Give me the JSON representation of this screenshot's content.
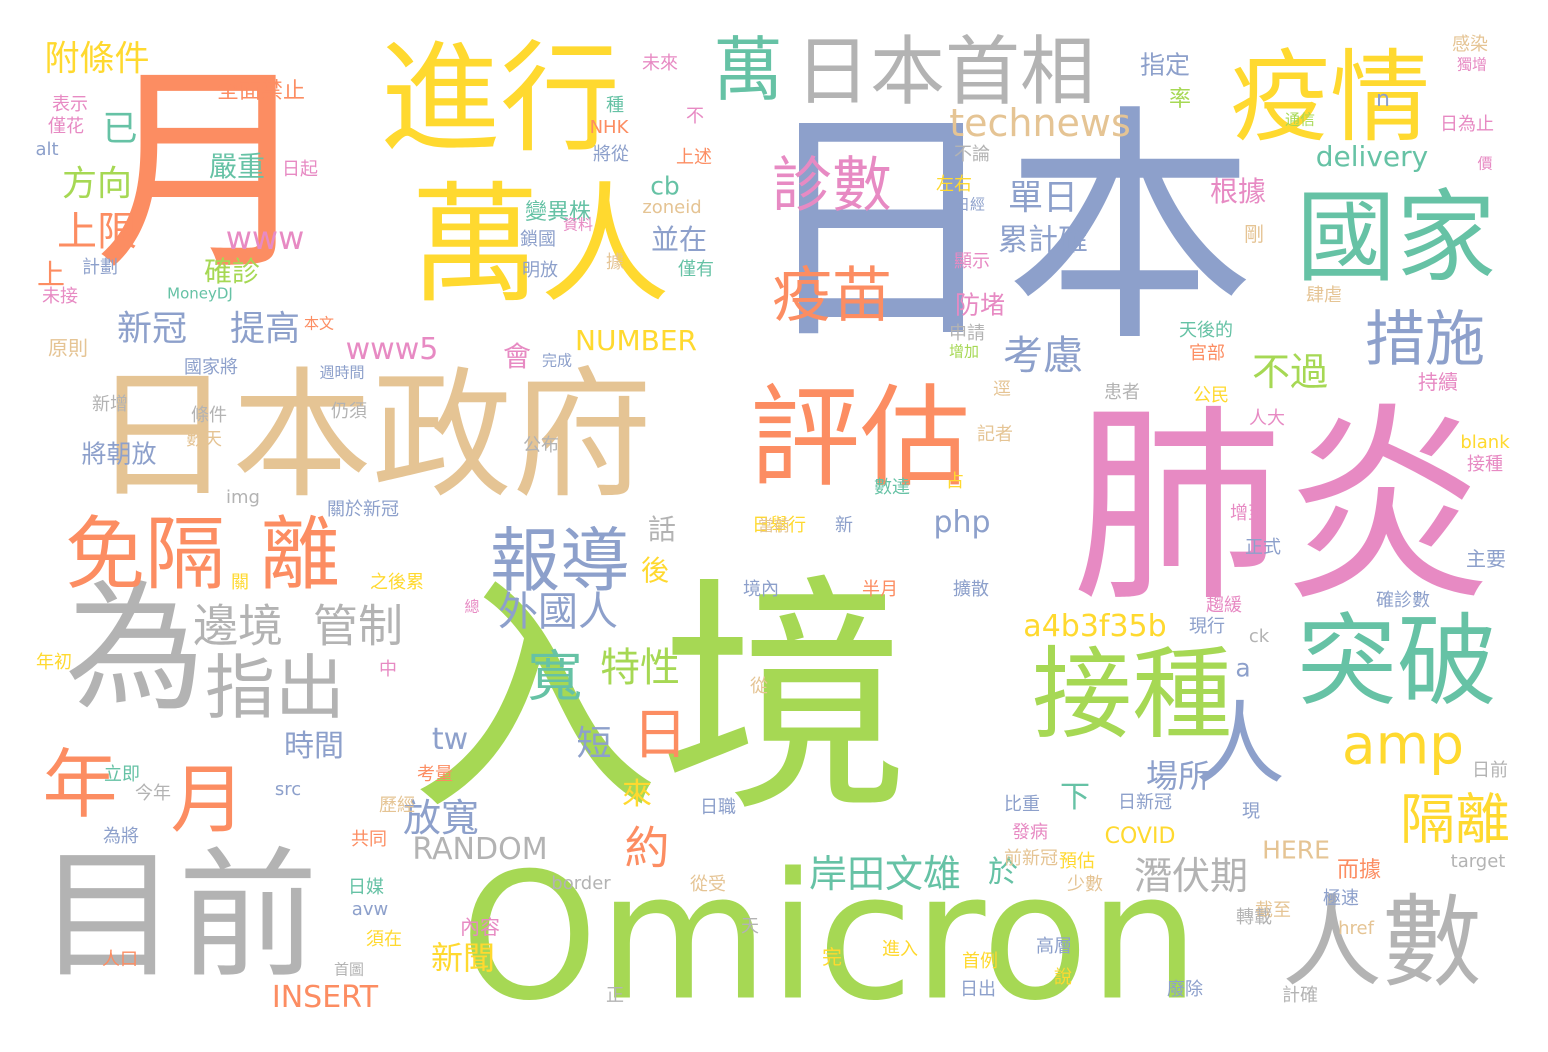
{
  "palette": [
    "#fc8d62",
    "#66c2a5",
    "#8da0cb",
    "#e78ac3",
    "#a6d854",
    "#ffd92f",
    "#e5c494",
    "#b3b3b3"
  ],
  "words": [
    {
      "text": "入境",
      "color": "#a6d854"
    },
    {
      "text": "日本",
      "color": "#8da0cb"
    },
    {
      "text": "月",
      "color": "#fc8d62"
    },
    {
      "text": "肺炎",
      "color": "#e78ac3"
    },
    {
      "text": "Omicron",
      "color": "#a6d854"
    },
    {
      "text": "日本政府",
      "color": "#e5c494"
    },
    {
      "text": "進行",
      "color": "#ffd92f"
    },
    {
      "text": "萬人",
      "color": "#ffd92f"
    },
    {
      "text": "為",
      "color": "#b3b3b3"
    },
    {
      "text": "目前",
      "color": "#b3b3b3"
    },
    {
      "text": "評估",
      "color": "#fc8d62"
    },
    {
      "text": "疫情",
      "color": "#ffd92f"
    },
    {
      "text": "國家",
      "color": "#66c2a5"
    },
    {
      "text": "突破",
      "color": "#66c2a5"
    },
    {
      "text": "接種",
      "color": "#a6d854"
    },
    {
      "text": "人數",
      "color": "#b3b3b3"
    },
    {
      "text": "人",
      "color": "#8da0cb"
    },
    {
      "text": "日本首相",
      "color": "#b3b3b3"
    },
    {
      "text": "萬",
      "color": "#66c2a5"
    },
    {
      "text": "免隔",
      "color": "#fc8d62"
    },
    {
      "text": "離",
      "color": "#fc8d62"
    },
    {
      "text": "年",
      "color": "#fc8d62"
    },
    {
      "text": "月",
      "color": "#fc8d62"
    },
    {
      "text": "指出",
      "color": "#b3b3b3"
    },
    {
      "text": "報導",
      "color": "#8da0cb"
    },
    {
      "text": "診數",
      "color": "#e78ac3"
    },
    {
      "text": "疫苗",
      "color": "#fc8d62"
    },
    {
      "text": "措施",
      "color": "#8da0cb"
    },
    {
      "text": "amp",
      "color": "#ffd92f"
    },
    {
      "text": "隔離",
      "color": "#ffd92f"
    },
    {
      "text": "邊境",
      "color": "#b3b3b3"
    },
    {
      "text": "管制",
      "color": "#b3b3b3"
    },
    {
      "text": "寬",
      "color": "#66c2a5"
    },
    {
      "text": "日",
      "color": "#fc8d62"
    },
    {
      "text": "特性",
      "color": "#a6d854"
    },
    {
      "text": "約",
      "color": "#fc8d62"
    },
    {
      "text": "外國人",
      "color": "#8da0cb"
    },
    {
      "text": "technews",
      "color": "#e5c494"
    },
    {
      "text": "單日",
      "color": "#8da0cb"
    },
    {
      "text": "累計確",
      "color": "#8da0cb"
    },
    {
      "text": "考慮",
      "color": "#8da0cb"
    },
    {
      "text": "不過",
      "color": "#a6d854"
    },
    {
      "text": "附條件",
      "color": "#ffd92f"
    },
    {
      "text": "方向",
      "color": "#a6d854"
    },
    {
      "text": "上限",
      "color": "#fc8d62"
    },
    {
      "text": "已",
      "color": "#66c2a5"
    },
    {
      "text": "新冠",
      "color": "#8da0cb"
    },
    {
      "text": "提高",
      "color": "#8da0cb"
    },
    {
      "text": "www",
      "color": "#e78ac3"
    },
    {
      "text": "www5",
      "color": "#e78ac3"
    },
    {
      "text": "NUMBER",
      "color": "#ffd92f"
    },
    {
      "text": "RANDOM",
      "color": "#b3b3b3"
    },
    {
      "text": "岸田文雄",
      "color": "#66c2a5"
    },
    {
      "text": "潛伏期",
      "color": "#b3b3b3"
    },
    {
      "text": "放寬",
      "color": "#8da0cb"
    },
    {
      "text": "場所",
      "color": "#8da0cb"
    },
    {
      "text": "時間",
      "color": "#8da0cb"
    },
    {
      "text": "短",
      "color": "#8da0cb"
    },
    {
      "text": "delivery",
      "color": "#66c2a5"
    },
    {
      "text": "a4b3f35b",
      "color": "#ffd92f"
    },
    {
      "text": "INSERT",
      "color": "#fc8d62"
    },
    {
      "text": "新聞",
      "color": "#ffd92f"
    },
    {
      "text": "於",
      "color": "#66c2a5"
    },
    {
      "text": "下",
      "color": "#66c2a5"
    },
    {
      "text": "來",
      "color": "#ffd92f"
    },
    {
      "text": "tw",
      "color": "#8da0cb"
    },
    {
      "text": "php",
      "color": "#8da0cb"
    },
    {
      "text": "cb",
      "color": "#66c2a5"
    },
    {
      "text": "並在",
      "color": "#8da0cb"
    },
    {
      "text": "話",
      "color": "#b3b3b3"
    },
    {
      "text": "後",
      "color": "#ffd92f"
    },
    {
      "text": "a",
      "color": "#8da0cb"
    },
    {
      "text": "嚴重",
      "color": "#66c2a5"
    },
    {
      "text": "確診",
      "color": "#a6d854"
    },
    {
      "text": "上",
      "color": "#fc8d62"
    },
    {
      "text": "會",
      "color": "#e78ac3"
    },
    {
      "text": "根據",
      "color": "#e78ac3"
    },
    {
      "text": "防堵",
      "color": "#e78ac3"
    },
    {
      "text": "指定",
      "color": "#8da0cb"
    },
    {
      "text": "率",
      "color": "#a6d854"
    },
    {
      "text": "COVID",
      "color": "#ffd92f"
    },
    {
      "text": "HERE",
      "color": "#e5c494"
    },
    {
      "text": "而據",
      "color": "#fc8d62"
    },
    {
      "text": "將朝放",
      "color": "#8da0cb"
    },
    {
      "text": "全面禁止",
      "color": "#fc8d62"
    },
    {
      "text": "變異株",
      "color": "#66c2a5"
    },
    {
      "text": "zoneid",
      "color": "#e5c494"
    },
    {
      "text": "鎖國",
      "color": "#8da0cb"
    },
    {
      "text": "明放",
      "color": "#8da0cb"
    },
    {
      "text": "剛",
      "color": "#e5c494"
    },
    {
      "text": "n",
      "color": "#8da0cb"
    },
    {
      "text": "原則",
      "color": "#e5c494"
    },
    {
      "text": "新增",
      "color": "#b3b3b3"
    },
    {
      "text": "數天",
      "color": "#e5c494"
    },
    {
      "text": "條件",
      "color": "#b3b3b3"
    },
    {
      "text": "仍須",
      "color": "#b3b3b3"
    },
    {
      "text": "img",
      "color": "#b3b3b3"
    },
    {
      "text": "公布",
      "color": "#b3b3b3"
    },
    {
      "text": "關於新冠",
      "color": "#8da0cb"
    },
    {
      "text": "日舉行",
      "color": "#ffd92f"
    },
    {
      "text": "新",
      "color": "#8da0cb"
    },
    {
      "text": "數達",
      "color": "#66c2a5"
    },
    {
      "text": "占",
      "color": "#ffd92f"
    },
    {
      "text": "半月",
      "color": "#fc8d62"
    },
    {
      "text": "境內",
      "color": "#8da0cb"
    },
    {
      "text": "擴散",
      "color": "#8da0cb"
    },
    {
      "text": "趨緩",
      "color": "#e78ac3"
    },
    {
      "text": "現行",
      "color": "#8da0cb"
    },
    {
      "text": "確診數",
      "color": "#8da0cb"
    },
    {
      "text": "ck",
      "color": "#b3b3b3"
    },
    {
      "text": "從",
      "color": "#e5c494"
    },
    {
      "text": "日新冠",
      "color": "#8da0cb"
    },
    {
      "text": "比重",
      "color": "#8da0cb"
    },
    {
      "text": "發病",
      "color": "#e78ac3"
    },
    {
      "text": "前新冠",
      "color": "#e5c494"
    },
    {
      "text": "預估",
      "color": "#ffd92f"
    },
    {
      "text": "少數",
      "color": "#e5c494"
    },
    {
      "text": "極速",
      "color": "#8da0cb"
    },
    {
      "text": "截至",
      "color": "#e5c494"
    },
    {
      "text": "target",
      "color": "#b3b3b3"
    },
    {
      "text": "href",
      "color": "#e5c494"
    },
    {
      "text": "轉載",
      "color": "#b3b3b3"
    },
    {
      "text": "border",
      "color": "#b3b3b3"
    },
    {
      "text": "從受",
      "color": "#e5c494"
    },
    {
      "text": "avw",
      "color": "#8da0cb"
    },
    {
      "text": "內容",
      "color": "#e78ac3"
    },
    {
      "text": "日媒",
      "color": "#66c2a5"
    },
    {
      "text": "須在",
      "color": "#ffd92f"
    },
    {
      "text": "人口",
      "color": "#fc8d62"
    },
    {
      "text": "首圖",
      "color": "#b3b3b3"
    },
    {
      "text": "天",
      "color": "#b3b3b3"
    },
    {
      "text": "完",
      "color": "#ffd92f"
    },
    {
      "text": "進入",
      "color": "#ffd92f"
    },
    {
      "text": "首例",
      "color": "#ffd92f"
    },
    {
      "text": "日出",
      "color": "#8da0cb"
    },
    {
      "text": "高層",
      "color": "#8da0cb"
    },
    {
      "text": "說",
      "color": "#ffd92f"
    },
    {
      "text": "廢除",
      "color": "#8da0cb"
    },
    {
      "text": "計確",
      "color": "#b3b3b3"
    },
    {
      "text": "正",
      "color": "#b3b3b3"
    },
    {
      "text": "src",
      "color": "#8da0cb"
    },
    {
      "text": "今年",
      "color": "#b3b3b3"
    },
    {
      "text": "為將",
      "color": "#8da0cb"
    },
    {
      "text": "立即",
      "color": "#66c2a5"
    },
    {
      "text": "共同",
      "color": "#fc8d62"
    },
    {
      "text": "歷經",
      "color": "#e5c494"
    },
    {
      "text": "考量",
      "color": "#fc8d62"
    },
    {
      "text": "日職",
      "color": "#8da0cb"
    },
    {
      "text": "中",
      "color": "#e78ac3"
    },
    {
      "text": "年初",
      "color": "#ffd92f"
    },
    {
      "text": "之後累",
      "color": "#ffd92f"
    },
    {
      "text": "總",
      "color": "#e78ac3"
    },
    {
      "text": "關",
      "color": "#ffd92f"
    },
    {
      "text": "alt",
      "color": "#8da0cb"
    },
    {
      "text": "僅花",
      "color": "#e78ac3"
    },
    {
      "text": "表示",
      "color": "#e78ac3"
    },
    {
      "text": "計劃",
      "color": "#8da0cb"
    },
    {
      "text": "未接",
      "color": "#e78ac3"
    },
    {
      "text": "MoneyDJ",
      "color": "#66c2a5"
    },
    {
      "text": "本文",
      "color": "#fc8d62"
    },
    {
      "text": "國家將",
      "color": "#8da0cb"
    },
    {
      "text": "週時間",
      "color": "#8da0cb"
    },
    {
      "text": "完成",
      "color": "#8da0cb"
    },
    {
      "text": "據",
      "color": "#e5c494"
    },
    {
      "text": "資料",
      "color": "#e78ac3"
    },
    {
      "text": "未來",
      "color": "#e78ac3"
    },
    {
      "text": "種",
      "color": "#66c2a5"
    },
    {
      "text": "NHK",
      "color": "#fc8d62"
    },
    {
      "text": "將從",
      "color": "#8da0cb"
    },
    {
      "text": "不",
      "color": "#e78ac3"
    },
    {
      "text": "上述",
      "color": "#fc8d62"
    },
    {
      "text": "僅有",
      "color": "#66c2a5"
    },
    {
      "text": "日起",
      "color": "#e78ac3"
    },
    {
      "text": "不論",
      "color": "#b3b3b3"
    },
    {
      "text": "左右",
      "color": "#ffd92f"
    },
    {
      "text": "日經",
      "color": "#8da0cb"
    },
    {
      "text": "顯示",
      "color": "#e78ac3"
    },
    {
      "text": "申請",
      "color": "#b3b3b3"
    },
    {
      "text": "增加",
      "color": "#a6d854"
    },
    {
      "text": "逕",
      "color": "#e5c494"
    },
    {
      "text": "記者",
      "color": "#e5c494"
    },
    {
      "text": "患者",
      "color": "#b3b3b3"
    },
    {
      "text": "公民",
      "color": "#ffd92f"
    },
    {
      "text": "人大",
      "color": "#e78ac3"
    },
    {
      "text": "官部",
      "color": "#fc8d62"
    },
    {
      "text": "天後的",
      "color": "#66c2a5"
    },
    {
      "text": "肆虐",
      "color": "#e5c494"
    },
    {
      "text": "持續",
      "color": "#e78ac3"
    },
    {
      "text": "blank",
      "color": "#ffd92f"
    },
    {
      "text": "接種",
      "color": "#e78ac3"
    },
    {
      "text": "增至",
      "color": "#e78ac3"
    },
    {
      "text": "正式",
      "color": "#8da0cb"
    },
    {
      "text": "主要",
      "color": "#8da0cb"
    },
    {
      "text": "日前",
      "color": "#b3b3b3"
    },
    {
      "text": "現",
      "color": "#8da0cb"
    },
    {
      "text": "感染",
      "color": "#e5c494"
    },
    {
      "text": "獨增",
      "color": "#e78ac3"
    },
    {
      "text": "日為止",
      "color": "#e78ac3"
    },
    {
      "text": "通信",
      "color": "#a6d854"
    },
    {
      "text": "價",
      "color": "#e78ac3"
    },
    {
      "text": "當前",
      "color": "#e5c494"
    }
  ]
}
